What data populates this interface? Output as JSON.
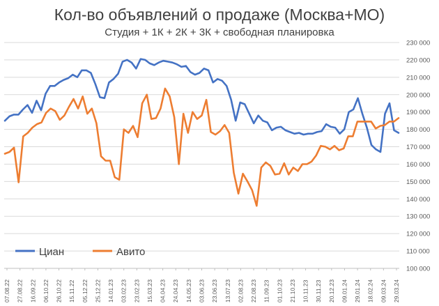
{
  "chart_data": {
    "type": "line",
    "title": "Кол-во объявлений о продаже (Москва+МО)",
    "subtitle": "Студия + 1К + 2К + 3К + свободная планировка",
    "xlabel": "",
    "ylabel": "",
    "ylim": [
      100000,
      230000
    ],
    "yticks": [
      100000,
      110000,
      120000,
      130000,
      140000,
      150000,
      160000,
      170000,
      180000,
      190000,
      200000,
      210000,
      220000,
      230000
    ],
    "ytick_labels": [
      "100 000",
      "110 000",
      "120 000",
      "130 000",
      "140 000",
      "150 000",
      "160 000",
      "170 000",
      "180 000",
      "190 000",
      "200 000",
      "210 000",
      "220 000",
      "230 000"
    ],
    "xtick_labels": [
      "07.08.22",
      "27.08.22",
      "16.09.22",
      "06.10.22",
      "26.10.22",
      "15.11.22",
      "05.12.22",
      "25.12.22",
      "14.01.23",
      "03.02.23",
      "23.02.23",
      "15.03.23",
      "04.04.23",
      "24.04.23",
      "14.05.23",
      "03.06.23",
      "23.06.23",
      "13.07.23",
      "02.08.23",
      "22.08.23",
      "11.09.23",
      "01.10.23",
      "21.10.23",
      "10.11.23",
      "30.11.23",
      "20.12.23",
      "09.01.24",
      "29.01.24",
      "18.02.24",
      "09.03.24",
      "29.03.24"
    ],
    "grid": "horizontal",
    "legend": "bottom-left",
    "y_axis_position": "right",
    "series": [
      {
        "name": "Циан",
        "color": "#4472c4",
        "values": [
          185000,
          187500,
          188500,
          188500,
          191500,
          194000,
          189500,
          196500,
          191000,
          200500,
          205000,
          205000,
          207000,
          208500,
          209500,
          211500,
          210000,
          214000,
          214000,
          212500,
          206000,
          198500,
          198000,
          207000,
          209000,
          212000,
          219000,
          220000,
          218500,
          215000,
          220500,
          220000,
          218000,
          217000,
          218500,
          219500,
          219000,
          218500,
          217500,
          216000,
          216500,
          213000,
          211500,
          212500,
          215000,
          214000,
          207000,
          209000,
          208000,
          205000,
          197000,
          185000,
          195500,
          194500,
          189000,
          183500,
          188000,
          185000,
          184000,
          179500,
          181000,
          181500,
          179500,
          178500,
          177500,
          178000,
          177000,
          177500,
          177500,
          178500,
          179000,
          183000,
          181500,
          181000,
          177500,
          180000,
          190000,
          191500,
          198000,
          189000,
          181000,
          171000,
          168500,
          167000,
          189000,
          195000,
          179500,
          178000
        ]
      },
      {
        "name": "Авито",
        "color": "#ed7d31",
        "values": [
          166000,
          167000,
          169500,
          149500,
          176000,
          178000,
          181000,
          183000,
          184000,
          189500,
          192000,
          190500,
          185500,
          188000,
          193000,
          197500,
          192000,
          199000,
          189000,
          192000,
          183500,
          164500,
          162000,
          162000,
          152500,
          151000,
          180000,
          178000,
          182000,
          175500,
          195000,
          200000,
          186000,
          186500,
          192000,
          203500,
          199000,
          187000,
          160000,
          189000,
          178000,
          190000,
          186000,
          188000,
          197000,
          178500,
          177000,
          179000,
          182500,
          178000,
          155000,
          143000,
          154500,
          150000,
          145000,
          136000,
          158000,
          161000,
          159000,
          154000,
          154500,
          160500,
          154000,
          158000,
          156000,
          160000,
          160000,
          161500,
          165000,
          170500,
          170000,
          168500,
          170500,
          168000,
          169000,
          176000,
          176000,
          184500,
          184500,
          184500,
          184500,
          180500,
          182000,
          182500,
          184500,
          184500,
          186500
        ]
      }
    ]
  }
}
